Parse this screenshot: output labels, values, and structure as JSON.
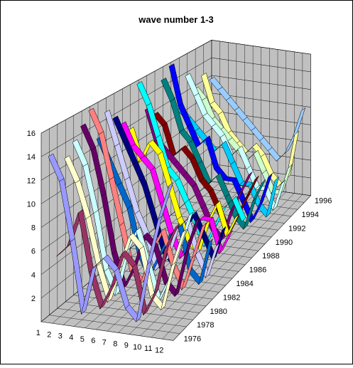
{
  "chart_data": {
    "type": "line3d",
    "title": "wave number 1-3",
    "categories": [
      "1",
      "2",
      "3",
      "4",
      "5",
      "6",
      "7",
      "8",
      "9",
      "10",
      "11",
      "12"
    ],
    "ylim": [
      0,
      16
    ],
    "yticks": [
      2,
      4,
      6,
      8,
      10,
      12,
      14,
      16
    ],
    "grid": true,
    "series": [
      {
        "name": "1976",
        "color": "#9999ff",
        "values": [
          14,
          12,
          7,
          1,
          5,
          6,
          5,
          2,
          1,
          6,
          10,
          13
        ]
      },
      {
        "name": null,
        "color": "#993366",
        "values": [
          5,
          6,
          9,
          4,
          1,
          3,
          6,
          5,
          1,
          3,
          7,
          9
        ]
      },
      {
        "name": "1978",
        "color": "#ffffcc",
        "values": [
          13,
          11,
          8,
          4,
          1,
          4,
          7,
          6,
          2,
          1,
          5,
          8
        ]
      },
      {
        "name": null,
        "color": "#ccffff",
        "values": [
          14,
          12,
          8,
          3,
          1,
          5,
          7,
          4,
          1,
          3,
          6,
          9
        ]
      },
      {
        "name": "1980",
        "color": "#660066",
        "values": [
          15,
          13,
          9,
          4,
          1,
          3,
          6,
          5,
          2,
          1,
          5,
          8
        ]
      },
      {
        "name": null,
        "color": "#ff8080",
        "values": [
          16,
          14,
          10,
          6,
          2,
          1,
          4,
          6,
          3,
          1,
          4,
          7
        ]
      },
      {
        "name": "1982",
        "color": "#0066cc",
        "values": [
          13,
          11,
          9,
          7,
          3,
          1,
          3,
          5,
          6,
          2,
          1,
          5
        ]
      },
      {
        "name": null,
        "color": "#ccccff",
        "values": [
          15,
          12,
          9,
          6,
          4,
          1,
          2,
          5,
          6,
          3,
          1,
          4
        ]
      },
      {
        "name": "1984",
        "color": "#000080",
        "values": [
          14,
          12,
          10,
          8,
          5,
          2,
          1,
          4,
          6,
          4,
          2,
          5
        ]
      },
      {
        "name": null,
        "color": "#ff00ff",
        "values": [
          13,
          11,
          10,
          9,
          6,
          3,
          1,
          3,
          5,
          5,
          2,
          4
        ]
      },
      {
        "name": "1986",
        "color": "#ffff00",
        "values": [
          12,
          9,
          11,
          10,
          7,
          4,
          2,
          1,
          4,
          6,
          3,
          5
        ]
      },
      {
        "name": null,
        "color": "#00ffff",
        "values": [
          16,
          14,
          11,
          8,
          7,
          5,
          3,
          1,
          3,
          5,
          6,
          4
        ]
      },
      {
        "name": "1988",
        "color": "#800080",
        "values": [
          13,
          10,
          9,
          8,
          7,
          6,
          4,
          2,
          1,
          4,
          6,
          8
        ]
      },
      {
        "name": null,
        "color": "#800000",
        "values": [
          12,
          11,
          8,
          9,
          8,
          6,
          5,
          3,
          1,
          3,
          5,
          7
        ]
      },
      {
        "name": "1990",
        "color": "#008080",
        "values": [
          15,
          13,
          10,
          9,
          7,
          5,
          6,
          4,
          2,
          1,
          4,
          6
        ]
      },
      {
        "name": null,
        "color": "#0000ff",
        "values": [
          16,
          12,
          10,
          8,
          9,
          6,
          5,
          5,
          3,
          1,
          3,
          6
        ]
      },
      {
        "name": "1992",
        "color": "#00ccff",
        "values": [
          11,
          10,
          9,
          8,
          7,
          8,
          6,
          4,
          4,
          2,
          1,
          5
        ]
      },
      {
        "name": null,
        "color": "#ccffff",
        "values": [
          14,
          12,
          10,
          9,
          8,
          6,
          7,
          5,
          3,
          3,
          1,
          4
        ]
      },
      {
        "name": "1994",
        "color": "#ccffcc",
        "values": [
          12,
          11,
          9,
          8,
          7,
          6,
          5,
          6,
          4,
          2,
          2,
          5
        ]
      },
      {
        "name": null,
        "color": "#ffff99",
        "values": [
          13,
          10,
          9,
          7,
          6,
          5,
          6,
          5,
          3,
          2,
          3,
          8
        ]
      },
      {
        "name": "1996",
        "color": "#99ccff",
        "values": [
          12,
          11,
          10,
          9,
          8,
          7,
          6,
          5,
          4,
          5,
          7,
          10
        ]
      }
    ]
  }
}
